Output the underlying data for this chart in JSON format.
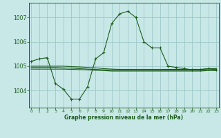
{
  "bg_color": "#c8e8e8",
  "plot_bg_color": "#c8e8e8",
  "grid_color": "#a0c8c8",
  "line_color": "#1a5c1a",
  "title": "Graphe pression niveau de la mer (hPa)",
  "ylim": [
    1003.3,
    1007.6
  ],
  "yticks": [
    1004,
    1005,
    1006,
    1007
  ],
  "xticks": [
    0,
    1,
    2,
    3,
    4,
    5,
    6,
    7,
    8,
    9,
    10,
    11,
    12,
    13,
    14,
    15,
    16,
    17,
    18,
    19,
    20,
    21,
    22,
    23
  ],
  "s1_y": [
    1005.2,
    1005.3,
    1005.35,
    1004.3,
    1004.05,
    1003.65,
    1003.65,
    1004.15,
    1005.3,
    1005.55,
    1006.75,
    1007.15,
    1007.25,
    1007.0,
    1006.0,
    1005.75,
    1005.75,
    1005.0,
    1004.95,
    1004.9,
    1004.85,
    1004.85,
    1004.9,
    1004.85
  ],
  "s2_y": [
    1005.0,
    1005.0,
    1005.0,
    1005.0,
    1005.0,
    1004.98,
    1004.97,
    1004.95,
    1004.93,
    1004.9,
    1004.88,
    1004.87,
    1004.87,
    1004.87,
    1004.87,
    1004.87,
    1004.87,
    1004.87,
    1004.87,
    1004.87,
    1004.87,
    1004.87,
    1004.9,
    1004.9
  ],
  "s3_y": [
    1004.88,
    1004.88,
    1004.88,
    1004.88,
    1004.88,
    1004.87,
    1004.86,
    1004.85,
    1004.83,
    1004.82,
    1004.8,
    1004.8,
    1004.8,
    1004.8,
    1004.8,
    1004.8,
    1004.8,
    1004.8,
    1004.8,
    1004.8,
    1004.8,
    1004.8,
    1004.82,
    1004.82
  ],
  "s4_y": [
    1004.95,
    1004.95,
    1004.95,
    1004.95,
    1004.93,
    1004.92,
    1004.9,
    1004.88,
    1004.87,
    1004.85,
    1004.84,
    1004.83,
    1004.83,
    1004.83,
    1004.83,
    1004.83,
    1004.83,
    1004.84,
    1004.84,
    1004.84,
    1004.84,
    1004.84,
    1004.86,
    1004.86
  ]
}
